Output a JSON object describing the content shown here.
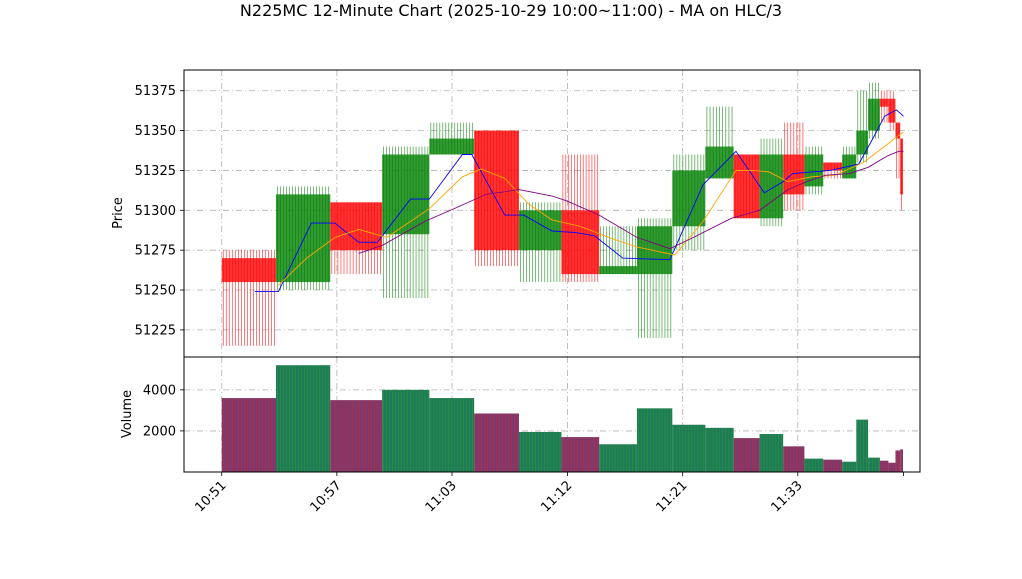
{
  "chart_data": {
    "type": "candlestick",
    "title": "N225MC 12-Minute Chart (2025-10-29 10:00~11:00) - MA on HLC/3",
    "price_axis": {
      "label": "Price",
      "ylim": [
        51208,
        51388
      ],
      "ticks": [
        51225,
        51250,
        51275,
        51300,
        51325,
        51350,
        51375
      ],
      "grid": true
    },
    "volume_axis": {
      "label": "Volume",
      "ylim": [
        0,
        5600
      ],
      "ticks": [
        2000,
        4000
      ],
      "tick_labels": [
        "2000",
        "4000"
      ],
      "grid": true
    },
    "x_axis": {
      "xlim": [
        -0.8,
        14.8
      ],
      "ticks": [
        0,
        2.44,
        4.88,
        7.33,
        9.77,
        12.21
      ],
      "tick_labels": [
        "10:51",
        "10:57",
        "11:03",
        "11:12",
        "11:21",
        "11:33"
      ]
    },
    "candles": [
      {
        "x": 0.0,
        "w": 1.15,
        "open": 51270,
        "high": 51275,
        "low": 51215,
        "close": 51255,
        "volume": 3600
      },
      {
        "x": 1.15,
        "w": 1.15,
        "open": 51255,
        "high": 51315,
        "low": 51250,
        "close": 51310,
        "volume": 5200
      },
      {
        "x": 2.3,
        "w": 1.1,
        "open": 51305,
        "high": 51305,
        "low": 51260,
        "close": 51275,
        "volume": 3500
      },
      {
        "x": 3.4,
        "w": 1.0,
        "open": 51285,
        "high": 51340,
        "low": 51245,
        "close": 51335,
        "volume": 4000
      },
      {
        "x": 4.4,
        "w": 0.95,
        "open": 51335,
        "high": 51355,
        "low": 51335,
        "close": 51345,
        "volume": 3600
      },
      {
        "x": 5.35,
        "w": 0.95,
        "open": 51350,
        "high": 51350,
        "low": 51265,
        "close": 51275,
        "volume": 2850
      },
      {
        "x": 6.3,
        "w": 0.9,
        "open": 51275,
        "high": 51305,
        "low": 51255,
        "close": 51300,
        "volume": 1950
      },
      {
        "x": 7.2,
        "w": 0.8,
        "open": 51300,
        "high": 51335,
        "low": 51255,
        "close": 51260,
        "volume": 1700
      },
      {
        "x": 8.0,
        "w": 0.8,
        "open": 51260,
        "high": 51290,
        "low": 51260,
        "close": 51265,
        "volume": 1350
      },
      {
        "x": 8.8,
        "w": 0.75,
        "open": 51260,
        "high": 51295,
        "low": 51220,
        "close": 51290,
        "volume": 3100
      },
      {
        "x": 9.55,
        "w": 0.7,
        "open": 51290,
        "high": 51335,
        "low": 51275,
        "close": 51325,
        "volume": 2300
      },
      {
        "x": 10.25,
        "w": 0.6,
        "open": 51320,
        "high": 51365,
        "low": 51320,
        "close": 51340,
        "volume": 2150
      },
      {
        "x": 10.85,
        "w": 0.55,
        "open": 51335,
        "high": 51335,
        "low": 51295,
        "close": 51295,
        "volume": 1650
      },
      {
        "x": 11.4,
        "w": 0.5,
        "open": 51295,
        "high": 51345,
        "low": 51290,
        "close": 51335,
        "volume": 1850
      },
      {
        "x": 11.9,
        "w": 0.45,
        "open": 51335,
        "high": 51355,
        "low": 51300,
        "close": 51310,
        "volume": 1250
      },
      {
        "x": 12.35,
        "w": 0.4,
        "open": 51315,
        "high": 51340,
        "low": 51310,
        "close": 51335,
        "volume": 650
      },
      {
        "x": 12.75,
        "w": 0.4,
        "open": 51330,
        "high": 51330,
        "low": 51320,
        "close": 51325,
        "volume": 600
      },
      {
        "x": 13.15,
        "w": 0.3,
        "open": 51320,
        "high": 51340,
        "low": 51320,
        "close": 51335,
        "volume": 500
      },
      {
        "x": 13.45,
        "w": 0.25,
        "open": 51335,
        "high": 51375,
        "low": 51330,
        "close": 51350,
        "volume": 2550
      },
      {
        "x": 13.7,
        "w": 0.25,
        "open": 51350,
        "high": 51380,
        "low": 51345,
        "close": 51370,
        "volume": 700
      },
      {
        "x": 13.95,
        "w": 0.18,
        "open": 51370,
        "high": 51375,
        "low": 51355,
        "close": 51365,
        "volume": 550
      },
      {
        "x": 14.13,
        "w": 0.15,
        "open": 51370,
        "high": 51375,
        "low": 51350,
        "close": 51355,
        "volume": 450
      },
      {
        "x": 14.28,
        "w": 0.1,
        "open": 51355,
        "high": 51355,
        "low": 51320,
        "close": 51345,
        "volume": 1050
      },
      {
        "x": 14.38,
        "w": 0.06,
        "open": 51345,
        "high": 51345,
        "low": 51300,
        "close": 51310,
        "volume": 1100
      }
    ],
    "ma_lines": [
      {
        "color": "#0000ff",
        "points": [
          [
            0.7,
            51249
          ],
          [
            1.2,
            51249
          ],
          [
            1.9,
            51292
          ],
          [
            2.4,
            51292
          ],
          [
            2.9,
            51280
          ],
          [
            3.3,
            51280
          ],
          [
            4.0,
            51307
          ],
          [
            4.4,
            51307
          ],
          [
            5.1,
            51335
          ],
          [
            5.3,
            51335
          ],
          [
            6.0,
            51297
          ],
          [
            6.4,
            51297
          ],
          [
            7.0,
            51287
          ],
          [
            7.5,
            51286
          ],
          [
            7.9,
            51284
          ],
          [
            8.5,
            51270
          ],
          [
            9.5,
            51269
          ],
          [
            10.2,
            51316
          ],
          [
            10.9,
            51337
          ],
          [
            11.5,
            51311
          ],
          [
            11.9,
            51318
          ],
          [
            12.1,
            51323
          ],
          [
            12.9,
            51325
          ],
          [
            13.5,
            51329
          ],
          [
            13.8,
            51345
          ],
          [
            14.05,
            51359
          ],
          [
            14.3,
            51363
          ],
          [
            14.45,
            51359
          ]
        ]
      },
      {
        "color": "#ffa500",
        "points": [
          [
            1.2,
            51253
          ],
          [
            1.8,
            51270
          ],
          [
            2.4,
            51283
          ],
          [
            2.9,
            51288
          ],
          [
            3.5,
            51283
          ],
          [
            4.4,
            51301
          ],
          [
            5.1,
            51321
          ],
          [
            5.5,
            51326
          ],
          [
            6.0,
            51320
          ],
          [
            6.5,
            51304
          ],
          [
            7.0,
            51294
          ],
          [
            7.6,
            51290
          ],
          [
            8.2,
            51283
          ],
          [
            8.8,
            51277
          ],
          [
            9.6,
            51272
          ],
          [
            10.2,
            51293
          ],
          [
            10.9,
            51325
          ],
          [
            11.3,
            51325
          ],
          [
            11.6,
            51324
          ],
          [
            12.0,
            51318
          ],
          [
            12.5,
            51321
          ],
          [
            13.0,
            51322
          ],
          [
            13.6,
            51330
          ],
          [
            14.0,
            51339
          ],
          [
            14.35,
            51347
          ],
          [
            14.45,
            51349
          ]
        ]
      },
      {
        "color": "#800080",
        "points": [
          [
            2.9,
            51273
          ],
          [
            3.4,
            51278
          ],
          [
            4.3,
            51293
          ],
          [
            5.0,
            51302
          ],
          [
            5.6,
            51310
          ],
          [
            6.3,
            51313
          ],
          [
            7.0,
            51309
          ],
          [
            7.3,
            51306
          ],
          [
            8.0,
            51297
          ],
          [
            8.8,
            51283
          ],
          [
            9.5,
            51276
          ],
          [
            10.0,
            51283
          ],
          [
            10.8,
            51295
          ],
          [
            11.4,
            51300
          ],
          [
            12.0,
            51313
          ],
          [
            12.4,
            51318
          ],
          [
            12.8,
            51322
          ],
          [
            13.3,
            51323
          ],
          [
            13.7,
            51327
          ],
          [
            14.1,
            51334
          ],
          [
            14.35,
            51337
          ],
          [
            14.45,
            51337
          ]
        ]
      }
    ],
    "colors": {
      "up": "#008000",
      "down": "#ff0000"
    }
  }
}
